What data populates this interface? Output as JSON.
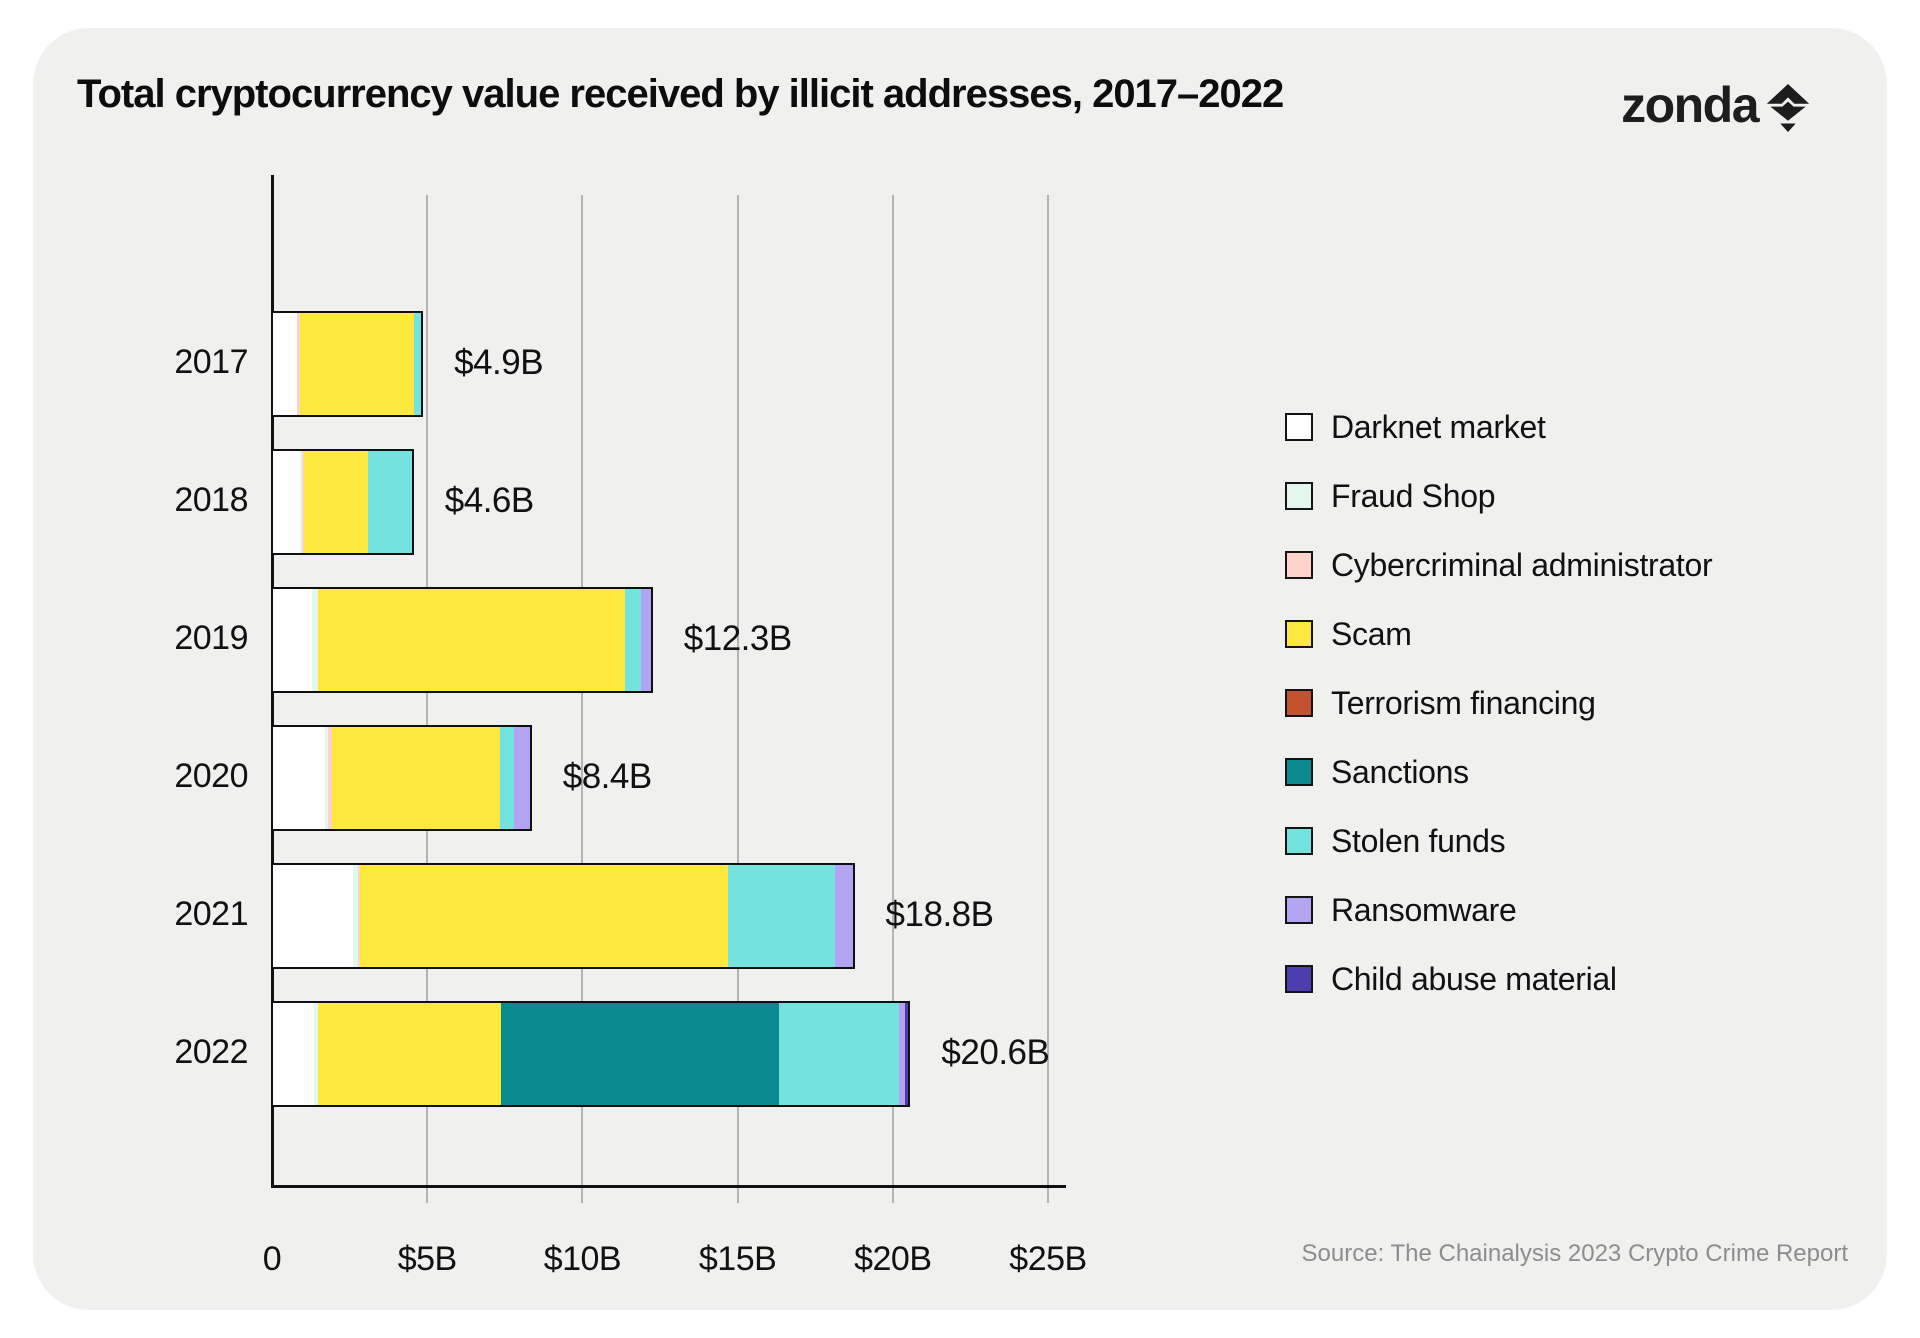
{
  "page": {
    "title": "Total cryptocurrency value received by illicit addresses, 2017–2022",
    "brand": "zonda",
    "source": "Source: The Chainalysis 2023 Crypto Crime Report"
  },
  "colors": {
    "darknet_market": "#ffffff",
    "fraud_shop": "#e2f8ee",
    "cybercriminal_administrator": "#fdd3ca",
    "scam": "#ffe83d",
    "terrorism_financing": "#c2512f",
    "sanctions": "#088a90",
    "stolen_funds": "#74e3e0",
    "ransomware": "#b2a4f2",
    "child_abuse_material": "#4c3daf",
    "card_bg": "#f0f0ee",
    "gridline": "#b4b4b4",
    "axis": "#111111",
    "bar_border": "#101010"
  },
  "legend": [
    {
      "key": "darknet_market",
      "label": "Darknet market"
    },
    {
      "key": "fraud_shop",
      "label": "Fraud Shop"
    },
    {
      "key": "cybercriminal_administrator",
      "label": "Cybercriminal administrator"
    },
    {
      "key": "scam",
      "label": "Scam"
    },
    {
      "key": "terrorism_financing",
      "label": "Terrorism financing"
    },
    {
      "key": "sanctions",
      "label": "Sanctions"
    },
    {
      "key": "stolen_funds",
      "label": "Stolen funds"
    },
    {
      "key": "ransomware",
      "label": "Ransomware"
    },
    {
      "key": "child_abuse_material",
      "label": "Child abuse material"
    }
  ],
  "chart_data": {
    "type": "bar",
    "orientation": "horizontal",
    "stacked": true,
    "title": "Total cryptocurrency value received by illicit addresses, 2017–2022",
    "unit": "$B",
    "xlim": [
      0,
      25
    ],
    "grid": true,
    "legend_position": "right",
    "x_ticks": [
      {
        "value": 0,
        "label": "0"
      },
      {
        "value": 5,
        "label": "$5B"
      },
      {
        "value": 10,
        "label": "$10B"
      },
      {
        "value": 15,
        "label": "$15B"
      },
      {
        "value": 20,
        "label": "$20B"
      },
      {
        "value": 25,
        "label": "$25B"
      }
    ],
    "categories": [
      "2017",
      "2018",
      "2019",
      "2020",
      "2021",
      "2022"
    ],
    "bars": [
      {
        "year": "2017",
        "total": 4.9,
        "total_label": "$4.9B",
        "segments": [
          {
            "key": "darknet_market",
            "value": 0.8
          },
          {
            "key": "cybercriminal_administrator",
            "value": 0.09
          },
          {
            "key": "scam",
            "value": 3.79
          },
          {
            "key": "stolen_funds",
            "value": 0.22
          }
        ]
      },
      {
        "year": "2018",
        "total": 4.6,
        "total_label": "$4.6B",
        "segments": [
          {
            "key": "darknet_market",
            "value": 0.9
          },
          {
            "key": "fraud_shop",
            "value": 0.07
          },
          {
            "key": "cybercriminal_administrator",
            "value": 0.07
          },
          {
            "key": "scam",
            "value": 2.1
          },
          {
            "key": "stolen_funds",
            "value": 1.46
          }
        ]
      },
      {
        "year": "2019",
        "total": 12.3,
        "total_label": "$12.3B",
        "segments": [
          {
            "key": "darknet_market",
            "value": 1.28
          },
          {
            "key": "fraud_shop",
            "value": 0.17
          },
          {
            "key": "scam",
            "value": 10.02
          },
          {
            "key": "stolen_funds",
            "value": 0.5
          },
          {
            "key": "ransomware",
            "value": 0.33
          }
        ]
      },
      {
        "year": "2020",
        "total": 8.4,
        "total_label": "$8.4B",
        "segments": [
          {
            "key": "darknet_market",
            "value": 1.7
          },
          {
            "key": "fraud_shop",
            "value": 0.09
          },
          {
            "key": "cybercriminal_administrator",
            "value": 0.15
          },
          {
            "key": "scam",
            "value": 5.5
          },
          {
            "key": "stolen_funds",
            "value": 0.45
          },
          {
            "key": "ransomware",
            "value": 0.51
          }
        ]
      },
      {
        "year": "2021",
        "total": 18.8,
        "total_label": "$18.8B",
        "segments": [
          {
            "key": "darknet_market",
            "value": 2.6
          },
          {
            "key": "fraud_shop",
            "value": 0.15
          },
          {
            "key": "cybercriminal_administrator",
            "value": 0.06
          },
          {
            "key": "scam",
            "value": 11.96
          },
          {
            "key": "stolen_funds",
            "value": 3.45
          },
          {
            "key": "ransomware",
            "value": 0.58
          }
        ]
      },
      {
        "year": "2022",
        "total": 20.6,
        "total_label": "$20.6B",
        "segments": [
          {
            "key": "darknet_market",
            "value": 1.33
          },
          {
            "key": "fraud_shop",
            "value": 0.13
          },
          {
            "key": "scam",
            "value": 5.94
          },
          {
            "key": "sanctions",
            "value": 9.0
          },
          {
            "key": "stolen_funds",
            "value": 3.9
          },
          {
            "key": "ransomware",
            "value": 0.2
          },
          {
            "key": "child_abuse_material",
            "value": 0.1
          }
        ]
      }
    ]
  }
}
